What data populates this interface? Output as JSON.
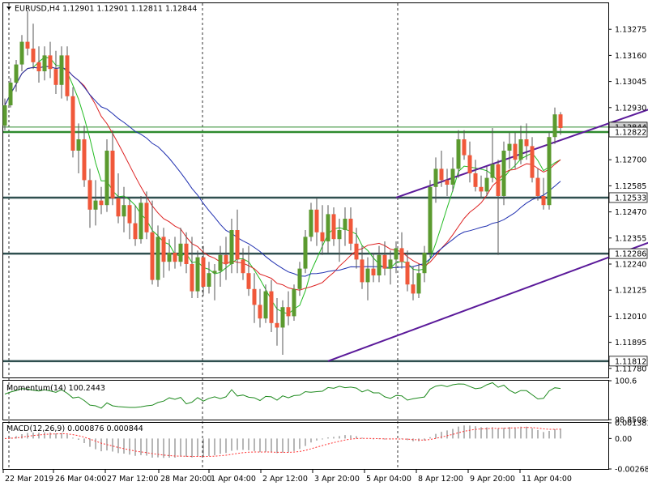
{
  "header": {
    "title": "EURUSD,H4  1.12901  1.12901  1.12811  1.12844",
    "menu_icon": "triangle-down-icon"
  },
  "colors": {
    "bull": "#5b9a2f",
    "bear": "#f0583a",
    "ma_green": "#22bb22",
    "ma_red": "#dd2222",
    "ma_blue": "#1f2fb0",
    "level_green": "#2e8b2e",
    "level_dark": "#2f4f4f",
    "channel": "#5b1a9a",
    "momentum": "#1e8a1e",
    "macd_hist": "#6d6d6d",
    "macd_signal": "#ff3030",
    "grid": "#000080",
    "border": "#000000"
  },
  "chart_data": [
    {
      "type": "candlestick",
      "symbol": "EURUSD",
      "timeframe": "H4",
      "ylim": [
        1.1174,
        1.1339
      ],
      "y_ticks": [
        "1.13275",
        "1.13160",
        "1.13045",
        "1.12930",
        "1.12700",
        "1.12585",
        "1.12470",
        "1.12355",
        "1.12240",
        "1.12125",
        "1.12010",
        "1.11895",
        "1.11780"
      ],
      "x_ticks": [
        "22 Mar 2019",
        "26 Mar 04:00",
        "27 Mar 12:00",
        "28 Mar 20:00",
        "1 Apr 04:00",
        "2 Apr 12:00",
        "3 Apr 20:00",
        "5 Apr 04:00",
        "8 Apr 12:00",
        "9 Apr 20:00",
        "11 Apr 04:00"
      ],
      "levels": [
        {
          "label": "1.12844",
          "value": 1.12844,
          "style": "plain"
        },
        {
          "label": "1.12822",
          "value": 1.12822,
          "style": "green"
        },
        {
          "label": "1.12533",
          "value": 1.12533,
          "style": "dark"
        },
        {
          "label": "1.12286",
          "value": 1.12286,
          "style": "dark"
        },
        {
          "label": "1.11812",
          "value": 1.11812,
          "style": "dark"
        }
      ],
      "channel": {
        "upper": [
          [
            69,
            1.12533
          ],
          [
            135,
            1.13109
          ]
        ],
        "lower": [
          [
            57,
            1.11812
          ],
          [
            135,
            1.12533
          ]
        ]
      },
      "candles_ohlc": [
        [
          1.1285,
          1.1297,
          1.1283,
          1.1294
        ],
        [
          1.1294,
          1.1306,
          1.1293,
          1.1304
        ],
        [
          1.1304,
          1.1314,
          1.13,
          1.1312
        ],
        [
          1.1312,
          1.1325,
          1.1309,
          1.1322
        ],
        [
          1.1322,
          1.1336,
          1.1316,
          1.1319
        ],
        [
          1.1319,
          1.133,
          1.131,
          1.1313
        ],
        [
          1.1313,
          1.132,
          1.1304,
          1.1309
        ],
        [
          1.1309,
          1.132,
          1.1305,
          1.1316
        ],
        [
          1.1316,
          1.1322,
          1.1306,
          1.131
        ],
        [
          1.131,
          1.1318,
          1.1299,
          1.1303
        ],
        [
          1.1303,
          1.132,
          1.1297,
          1.1316
        ],
        [
          1.1316,
          1.132,
          1.1296,
          1.1298
        ],
        [
          1.1298,
          1.1302,
          1.1271,
          1.1274
        ],
        [
          1.1274,
          1.1286,
          1.1264,
          1.1279
        ],
        [
          1.1279,
          1.1285,
          1.1258,
          1.1261
        ],
        [
          1.1261,
          1.1266,
          1.124,
          1.1248
        ],
        [
          1.1248,
          1.1261,
          1.1241,
          1.1252
        ],
        [
          1.1252,
          1.1258,
          1.1246,
          1.125
        ],
        [
          1.125,
          1.1279,
          1.1247,
          1.1274
        ],
        [
          1.1274,
          1.1283,
          1.125,
          1.1253
        ],
        [
          1.1253,
          1.1264,
          1.1242,
          1.1245
        ],
        [
          1.1245,
          1.1258,
          1.1238,
          1.125
        ],
        [
          1.125,
          1.1253,
          1.1235,
          1.1242
        ],
        [
          1.1242,
          1.125,
          1.1232,
          1.1235
        ],
        [
          1.1235,
          1.1254,
          1.1233,
          1.1251
        ],
        [
          1.1251,
          1.1256,
          1.1235,
          1.1238
        ],
        [
          1.1238,
          1.1252,
          1.1215,
          1.1217
        ],
        [
          1.1217,
          1.1241,
          1.1214,
          1.1236
        ],
        [
          1.1236,
          1.124,
          1.1218,
          1.1225
        ],
        [
          1.1225,
          1.1235,
          1.1221,
          1.1229
        ],
        [
          1.1229,
          1.1236,
          1.1222,
          1.1225
        ],
        [
          1.1225,
          1.124,
          1.1223,
          1.1233
        ],
        [
          1.1233,
          1.1238,
          1.122,
          1.1224
        ],
        [
          1.1224,
          1.1236,
          1.1209,
          1.1212
        ],
        [
          1.1212,
          1.123,
          1.1209,
          1.1227
        ],
        [
          1.1227,
          1.1232,
          1.121,
          1.1214
        ],
        [
          1.1214,
          1.1225,
          1.1211,
          1.122
        ],
        [
          1.122,
          1.1224,
          1.1208,
          1.1221
        ],
        [
          1.1221,
          1.1232,
          1.1214,
          1.1228
        ],
        [
          1.1228,
          1.1236,
          1.1217,
          1.1224
        ],
        [
          1.1224,
          1.1244,
          1.122,
          1.1239
        ],
        [
          1.1239,
          1.1248,
          1.122,
          1.1226
        ],
        [
          1.1226,
          1.1231,
          1.1217,
          1.122
        ],
        [
          1.122,
          1.1232,
          1.121,
          1.1213
        ],
        [
          1.1213,
          1.122,
          1.1198,
          1.1206
        ],
        [
          1.1206,
          1.1213,
          1.1196,
          1.12
        ],
        [
          1.12,
          1.1215,
          1.1198,
          1.1212
        ],
        [
          1.1212,
          1.1217,
          1.1194,
          1.1198
        ],
        [
          1.1198,
          1.1209,
          1.1188,
          1.1196
        ],
        [
          1.1196,
          1.1208,
          1.1184,
          1.1205
        ],
        [
          1.1205,
          1.1212,
          1.1197,
          1.1201
        ],
        [
          1.1201,
          1.1215,
          1.1199,
          1.1213
        ],
        [
          1.1213,
          1.1225,
          1.121,
          1.1222
        ],
        [
          1.1222,
          1.1239,
          1.122,
          1.1236
        ],
        [
          1.1236,
          1.1251,
          1.1234,
          1.1248
        ],
        [
          1.1248,
          1.1253,
          1.1232,
          1.1238
        ],
        [
          1.1238,
          1.125,
          1.1228,
          1.1234
        ],
        [
          1.1234,
          1.125,
          1.1229,
          1.1246
        ],
        [
          1.1246,
          1.1249,
          1.1232,
          1.1235
        ],
        [
          1.1235,
          1.1244,
          1.1225,
          1.1239
        ],
        [
          1.1239,
          1.1249,
          1.1232,
          1.1244
        ],
        [
          1.1244,
          1.1249,
          1.123,
          1.1233
        ],
        [
          1.1233,
          1.124,
          1.1222,
          1.1226
        ],
        [
          1.1226,
          1.1232,
          1.1213,
          1.1216
        ],
        [
          1.1216,
          1.1227,
          1.1208,
          1.1222
        ],
        [
          1.1222,
          1.1229,
          1.1216,
          1.1219
        ],
        [
          1.1219,
          1.1232,
          1.1216,
          1.1228
        ],
        [
          1.1228,
          1.1234,
          1.1219,
          1.1222
        ],
        [
          1.1222,
          1.123,
          1.1215,
          1.1226
        ],
        [
          1.1226,
          1.1234,
          1.122,
          1.1231
        ],
        [
          1.1231,
          1.1238,
          1.1222,
          1.1225
        ],
        [
          1.1225,
          1.123,
          1.1212,
          1.1215
        ],
        [
          1.1215,
          1.1223,
          1.1208,
          1.1211
        ],
        [
          1.1211,
          1.1224,
          1.1209,
          1.122
        ],
        [
          1.122,
          1.1232,
          1.1216,
          1.1229
        ],
        [
          1.1229,
          1.1261,
          1.1227,
          1.1258
        ],
        [
          1.1258,
          1.1271,
          1.1251,
          1.1266
        ],
        [
          1.1266,
          1.1274,
          1.1258,
          1.1261
        ],
        [
          1.1261,
          1.1266,
          1.1254,
          1.1259
        ],
        [
          1.1259,
          1.1271,
          1.1256,
          1.1266
        ],
        [
          1.1266,
          1.1283,
          1.1262,
          1.1279
        ],
        [
          1.1279,
          1.1283,
          1.127,
          1.1272
        ],
        [
          1.1272,
          1.1278,
          1.126,
          1.1264
        ],
        [
          1.1264,
          1.127,
          1.1256,
          1.1258
        ],
        [
          1.1258,
          1.1263,
          1.1253,
          1.1256
        ],
        [
          1.1256,
          1.1267,
          1.1254,
          1.1262
        ],
        [
          1.1262,
          1.1284,
          1.126,
          1.1268
        ],
        [
          1.1268,
          1.127,
          1.1228,
          1.1254
        ],
        [
          1.1254,
          1.1278,
          1.125,
          1.1274
        ],
        [
          1.1274,
          1.1282,
          1.1266,
          1.1277
        ],
        [
          1.1277,
          1.1282,
          1.1266,
          1.127
        ],
        [
          1.127,
          1.1285,
          1.1268,
          1.1279
        ],
        [
          1.1279,
          1.1286,
          1.127,
          1.1276
        ],
        [
          1.1276,
          1.128,
          1.126,
          1.1262
        ],
        [
          1.1262,
          1.1266,
          1.1252,
          1.1254
        ],
        [
          1.1254,
          1.1262,
          1.1248,
          1.125
        ],
        [
          1.125,
          1.1282,
          1.1248,
          1.128
        ],
        [
          1.128,
          1.1293,
          1.1277,
          1.129
        ],
        [
          1.129,
          1.1291,
          1.1281,
          1.1284
        ]
      ]
    },
    {
      "type": "line",
      "name": "Momentum(14) 100.2443",
      "ylim": [
        98.8508,
        100.6
      ],
      "y_ticks": [
        "100.6",
        "98.8508"
      ]
    },
    {
      "type": "bar",
      "name": "MACD(12,26,9) 0.000876 0.000844",
      "ylim": [
        -0.002685,
        0.001381
      ],
      "y_ticks": [
        "0.001381",
        "0.00",
        "-0.002685"
      ]
    }
  ]
}
